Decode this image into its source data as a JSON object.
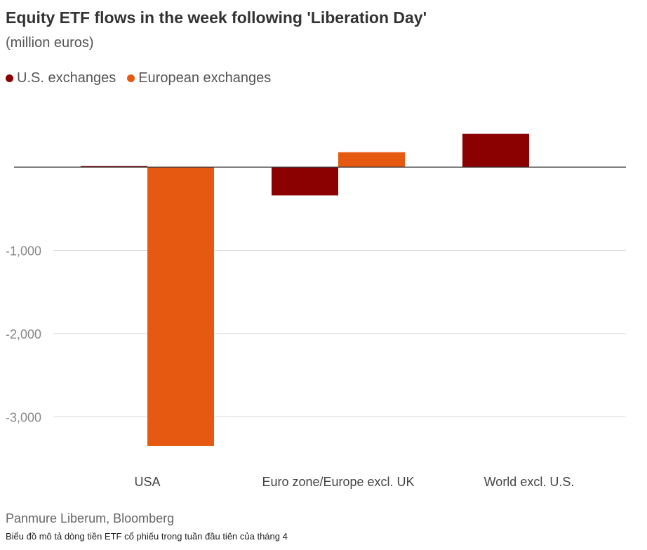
{
  "title": "Equity ETF flows in the week following 'Liberation Day'",
  "subtitle": "(million euros)",
  "source": "Panmure Liberum, Bloomberg",
  "caption": "Biểu đồ mô tả dòng tiền ETF cổ phiếu trong tuần đầu tiên của tháng 4",
  "colors": {
    "us": "#8b0000",
    "europe": "#e55a10",
    "grid": "#d9d9d9",
    "zero_line": "#333333",
    "tick_text": "#888888",
    "category_text": "#444444"
  },
  "chart_data": {
    "type": "bar",
    "categories": [
      "USA",
      "Euro zone/Europe excl. UK",
      "World excl. U.S."
    ],
    "series": [
      {
        "name": "U.S. exchanges",
        "values": [
          15,
          -340,
          400
        ]
      },
      {
        "name": "European exchanges",
        "values": [
          -3350,
          180,
          0
        ]
      }
    ],
    "yticks": [
      0,
      -1000,
      -2000,
      -3000
    ],
    "ytick_labels": [
      "",
      "-1,000",
      "-2,000",
      "-3,000"
    ],
    "ylim": [
      -3550,
      600
    ],
    "xlabel": "",
    "ylabel": "",
    "grid": true,
    "legend_position": "top-left"
  }
}
